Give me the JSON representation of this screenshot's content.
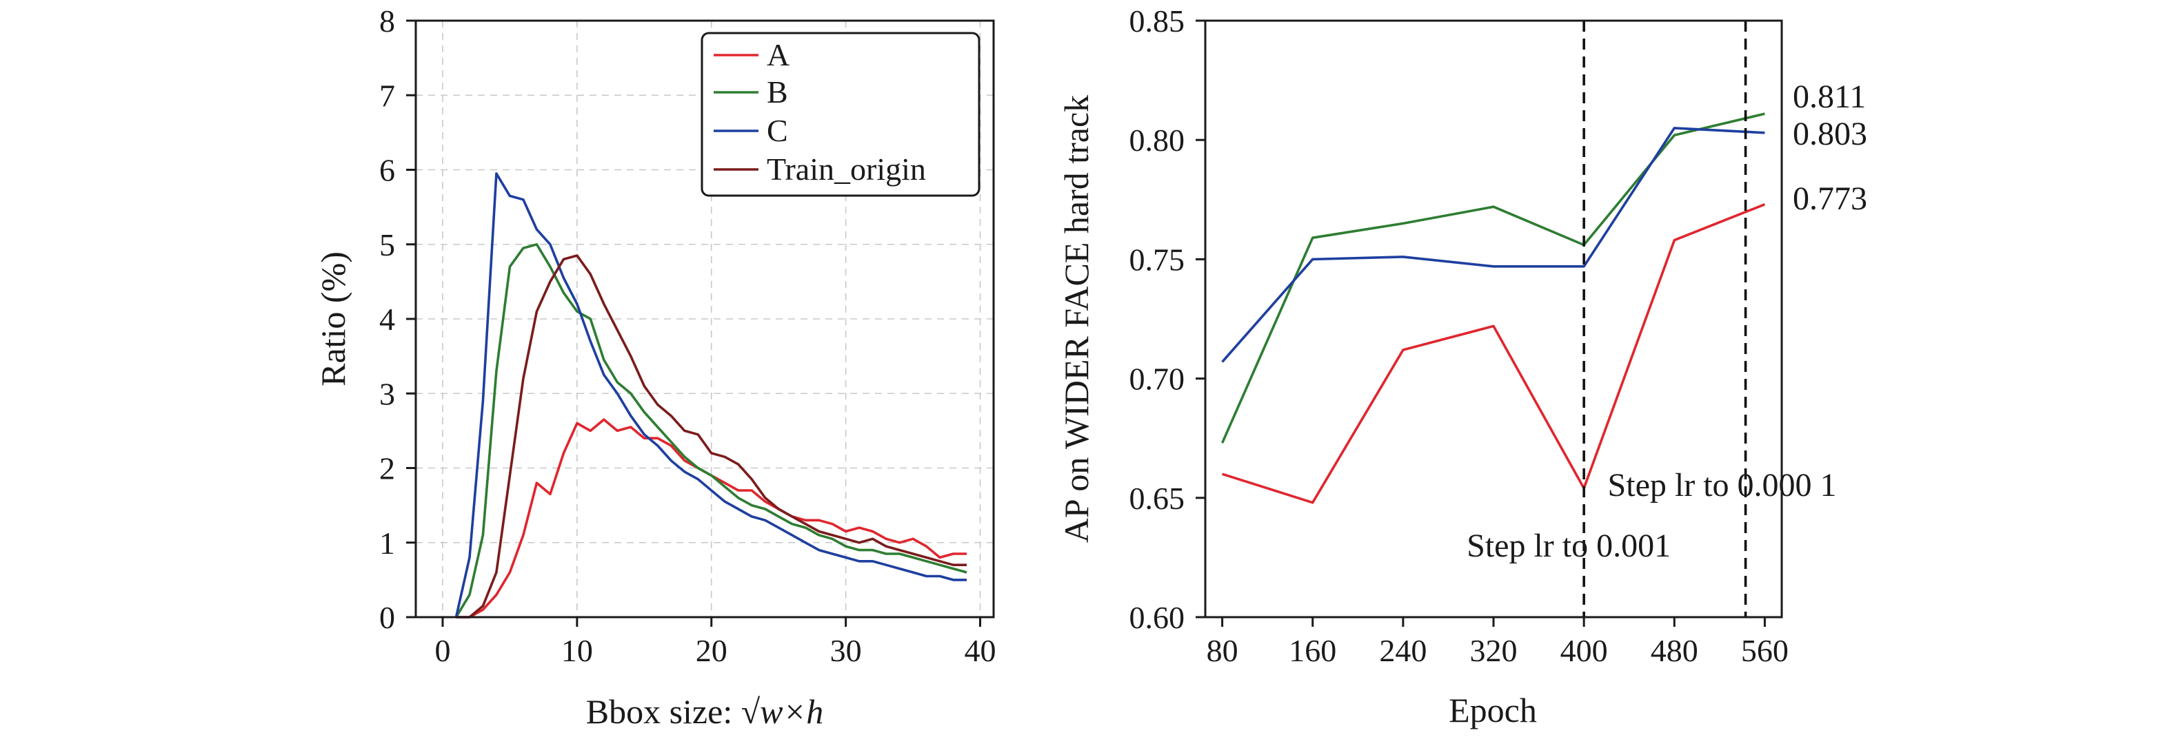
{
  "chart_data": [
    {
      "type": "line",
      "xlabel_prefix": "Bbox size: ",
      "xlabel_math": "√w×h",
      "ylabel": "Ratio (%)",
      "xlim": [
        -2,
        41
      ],
      "ylim": [
        0,
        8
      ],
      "xticks": [
        0,
        10,
        20,
        30,
        40
      ],
      "yticks": [
        0,
        1,
        2,
        3,
        4,
        5,
        6,
        7,
        8
      ],
      "grid": true,
      "legend": "top-right",
      "x": [
        1,
        2,
        3,
        4,
        5,
        6,
        7,
        8,
        9,
        10,
        11,
        12,
        13,
        14,
        15,
        16,
        17,
        18,
        19,
        20,
        21,
        22,
        23,
        24,
        25,
        26,
        27,
        28,
        29,
        30,
        31,
        32,
        33,
        34,
        35,
        36,
        37,
        38,
        39
      ],
      "series": [
        {
          "name": "A",
          "color": "#e0262e",
          "values": [
            0,
            0,
            0.1,
            0.3,
            0.6,
            1.1,
            1.8,
            1.65,
            2.2,
            2.6,
            2.5,
            2.65,
            2.5,
            2.55,
            2.4,
            2.4,
            2.3,
            2.1,
            2.0,
            1.9,
            1.8,
            1.7,
            1.7,
            1.55,
            1.45,
            1.35,
            1.3,
            1.3,
            1.25,
            1.15,
            1.2,
            1.15,
            1.05,
            1.0,
            1.05,
            0.95,
            0.8,
            0.85,
            0.85
          ]
        },
        {
          "name": "B",
          "color": "#2e7d32",
          "values": [
            0,
            0.3,
            1.1,
            3.3,
            4.7,
            4.95,
            5.0,
            4.7,
            4.35,
            4.1,
            4.0,
            3.45,
            3.15,
            3.0,
            2.75,
            2.55,
            2.35,
            2.15,
            2.0,
            1.9,
            1.75,
            1.6,
            1.5,
            1.45,
            1.35,
            1.25,
            1.2,
            1.1,
            1.05,
            0.95,
            0.9,
            0.9,
            0.85,
            0.85,
            0.8,
            0.75,
            0.7,
            0.65,
            0.6
          ]
        },
        {
          "name": "C",
          "color": "#1e3fa0",
          "values": [
            0,
            0.8,
            2.9,
            5.95,
            5.65,
            5.6,
            5.2,
            5.0,
            4.55,
            4.2,
            3.7,
            3.25,
            3.0,
            2.7,
            2.45,
            2.3,
            2.1,
            1.95,
            1.85,
            1.7,
            1.55,
            1.45,
            1.35,
            1.3,
            1.2,
            1.1,
            1.0,
            0.9,
            0.85,
            0.8,
            0.75,
            0.75,
            0.7,
            0.65,
            0.6,
            0.55,
            0.55,
            0.5,
            0.5
          ]
        },
        {
          "name": "Train_origin",
          "color": "#7b1c1c",
          "values": [
            0,
            0,
            0.15,
            0.6,
            1.9,
            3.2,
            4.1,
            4.5,
            4.8,
            4.85,
            4.6,
            4.2,
            3.85,
            3.5,
            3.1,
            2.85,
            2.7,
            2.5,
            2.45,
            2.2,
            2.15,
            2.05,
            1.85,
            1.6,
            1.45,
            1.35,
            1.25,
            1.15,
            1.1,
            1.05,
            1.0,
            1.05,
            0.95,
            0.9,
            0.85,
            0.8,
            0.75,
            0.7,
            0.7
          ]
        }
      ]
    },
    {
      "type": "line",
      "xlabel": "Epoch",
      "ylabel": "AP on WIDER FACE hard track",
      "xlim": [
        65,
        575
      ],
      "ylim": [
        0.6,
        0.85
      ],
      "xticks": [
        80,
        160,
        240,
        320,
        400,
        480,
        560
      ],
      "yticks": [
        0.6,
        0.65,
        0.7,
        0.75,
        0.8,
        0.85
      ],
      "ytick_labels": [
        "0.60",
        "0.65",
        "0.70",
        "0.75",
        "0.80",
        "0.85"
      ],
      "grid": false,
      "x": [
        80,
        160,
        240,
        320,
        400,
        480,
        560
      ],
      "series": [
        {
          "color": "#e0262e",
          "values": [
            0.66,
            0.648,
            0.712,
            0.722,
            0.654,
            0.758,
            0.773
          ]
        },
        {
          "color": "#2e7d32",
          "values": [
            0.673,
            0.759,
            0.765,
            0.772,
            0.756,
            0.802,
            0.811
          ]
        },
        {
          "color": "#1e3fa0",
          "values": [
            0.707,
            0.75,
            0.751,
            0.747,
            0.747,
            0.805,
            0.803
          ]
        }
      ],
      "end_labels": [
        "0.811",
        "0.803",
        "0.773"
      ],
      "vlines": [
        {
          "x": 400,
          "label": "Step lr to 0.001"
        },
        {
          "x": 543,
          "label": "Step lr to 0.000 1"
        }
      ]
    }
  ]
}
